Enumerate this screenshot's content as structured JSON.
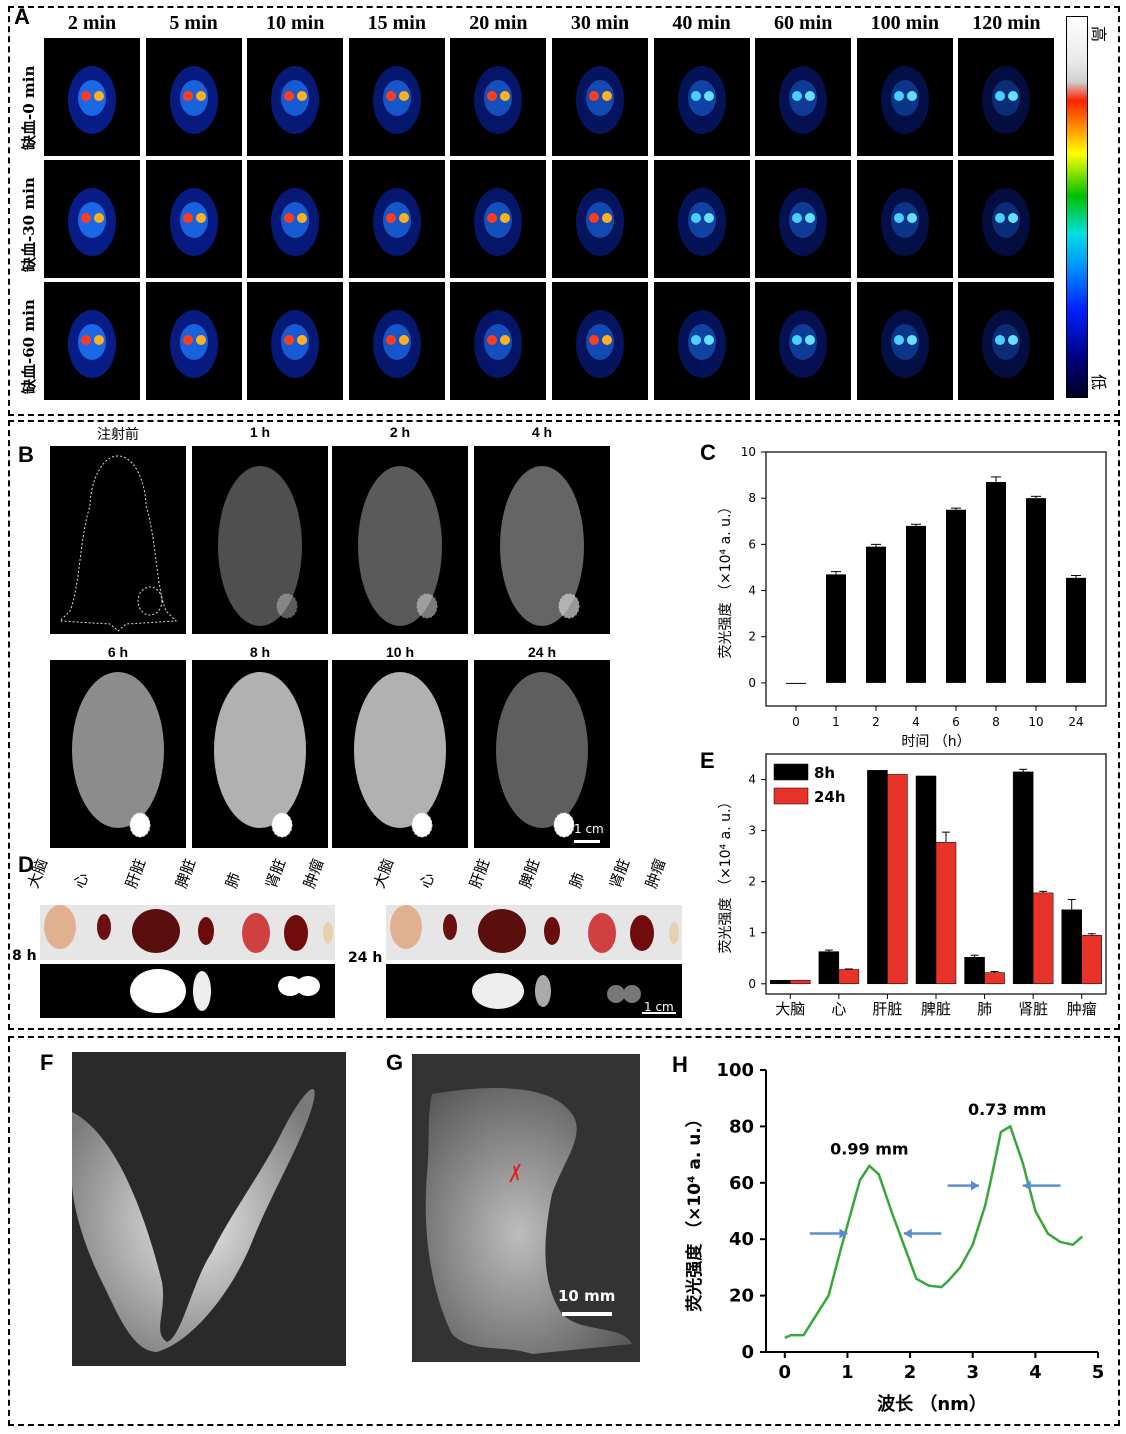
{
  "panel_a": {
    "label": "A",
    "times": [
      "2 min",
      "5 min",
      "10 min",
      "15 min",
      "20 min",
      "30 min",
      "40 min",
      "60 min",
      "100 min",
      "120 min"
    ],
    "rows": [
      "缺血-0 min",
      "缺血-30 min",
      "缺血-60 min"
    ],
    "colorbar_high": "高",
    "colorbar_low": "低"
  },
  "panel_b": {
    "label": "B",
    "times_row1": [
      "注射前",
      "1 h",
      "2 h",
      "4 h"
    ],
    "times_row2": [
      "6 h",
      "8 h",
      "10 h",
      "24 h"
    ],
    "scalebar": "1 cm"
  },
  "panel_d": {
    "label": "D",
    "organs": [
      "大脑",
      "心",
      "肝脏",
      "脾脏",
      "肺",
      "肾脏",
      "肿瘤"
    ],
    "organs_right": [
      "大脑",
      "心",
      "肝脏",
      "脾脏",
      "肺",
      "肾脏",
      "肿瘤"
    ],
    "time_left": "8 h",
    "time_right": "24 h",
    "scalebar": "1 cm"
  },
  "panel_f": {
    "label": "F"
  },
  "panel_g": {
    "label": "G",
    "scalebar": "10 mm"
  },
  "chart_data": [
    {
      "id": "C",
      "type": "bar",
      "label": "C",
      "categories": [
        "0",
        "1",
        "2",
        "4",
        "6",
        "8",
        "10",
        "24"
      ],
      "values": [
        0,
        4.7,
        5.9,
        6.8,
        7.5,
        8.7,
        8.0,
        4.55
      ],
      "errors": [
        0,
        0.12,
        0.1,
        0.07,
        0.07,
        0.22,
        0.08,
        0.1
      ],
      "ylim": [
        -1,
        10
      ],
      "yticks": [
        "0",
        "2",
        "4",
        "6",
        "8",
        "10"
      ],
      "xlabel": "时间 （h）",
      "ylabel": "荧光强度 （×10⁴ a. u.）"
    },
    {
      "id": "E",
      "type": "bar",
      "label": "E",
      "categories": [
        "大脑",
        "心",
        "肝脏",
        "脾脏",
        "肺",
        "肾脏",
        "肿瘤"
      ],
      "series": [
        {
          "name": "8h",
          "color": "#000000",
          "values": [
            0.07,
            0.63,
            4.18,
            4.07,
            0.52,
            4.15,
            1.45
          ],
          "errors": [
            0,
            0.03,
            0,
            0,
            0.04,
            0.05,
            0.2
          ]
        },
        {
          "name": "24h",
          "color": "#e8332a",
          "values": [
            0.07,
            0.28,
            4.1,
            2.77,
            0.22,
            1.78,
            0.95
          ],
          "errors": [
            0,
            0.01,
            0,
            0.2,
            0.02,
            0.03,
            0.03
          ]
        }
      ],
      "ylim": [
        -0.2,
        4.5
      ],
      "yticks": [
        "0",
        "1",
        "2",
        "3",
        "4"
      ],
      "ylabel": "荧光强度 （×10⁴ a. u.）",
      "legend": "top-left"
    },
    {
      "id": "H",
      "type": "line",
      "label": "H",
      "x": [
        0,
        0.1,
        0.3,
        0.5,
        0.7,
        0.9,
        1.1,
        1.2,
        1.35,
        1.5,
        1.7,
        1.9,
        2.1,
        2.3,
        2.5,
        2.6,
        2.8,
        3.0,
        3.2,
        3.3,
        3.45,
        3.6,
        3.8,
        4.0,
        4.2,
        4.4,
        4.6,
        4.75
      ],
      "y": [
        5,
        6,
        6,
        13,
        20,
        37,
        53,
        61,
        66,
        63,
        50,
        38,
        26,
        23.5,
        23,
        25,
        30,
        38,
        52,
        62,
        78,
        80,
        67,
        50,
        42,
        39,
        38,
        41
      ],
      "color": "#3aa63a",
      "xlim": [
        -0.3,
        5
      ],
      "ylim": [
        0,
        100
      ],
      "xticks": [
        "0",
        "1",
        "2",
        "3",
        "4",
        "5"
      ],
      "yticks": [
        "0",
        "20",
        "40",
        "60",
        "80",
        "100"
      ],
      "xlabel": "波长 （nm）",
      "ylabel": "荧光强度 （×10⁴ a. u.）",
      "annotations": [
        "0.99 mm",
        "0.73 mm"
      ]
    }
  ]
}
